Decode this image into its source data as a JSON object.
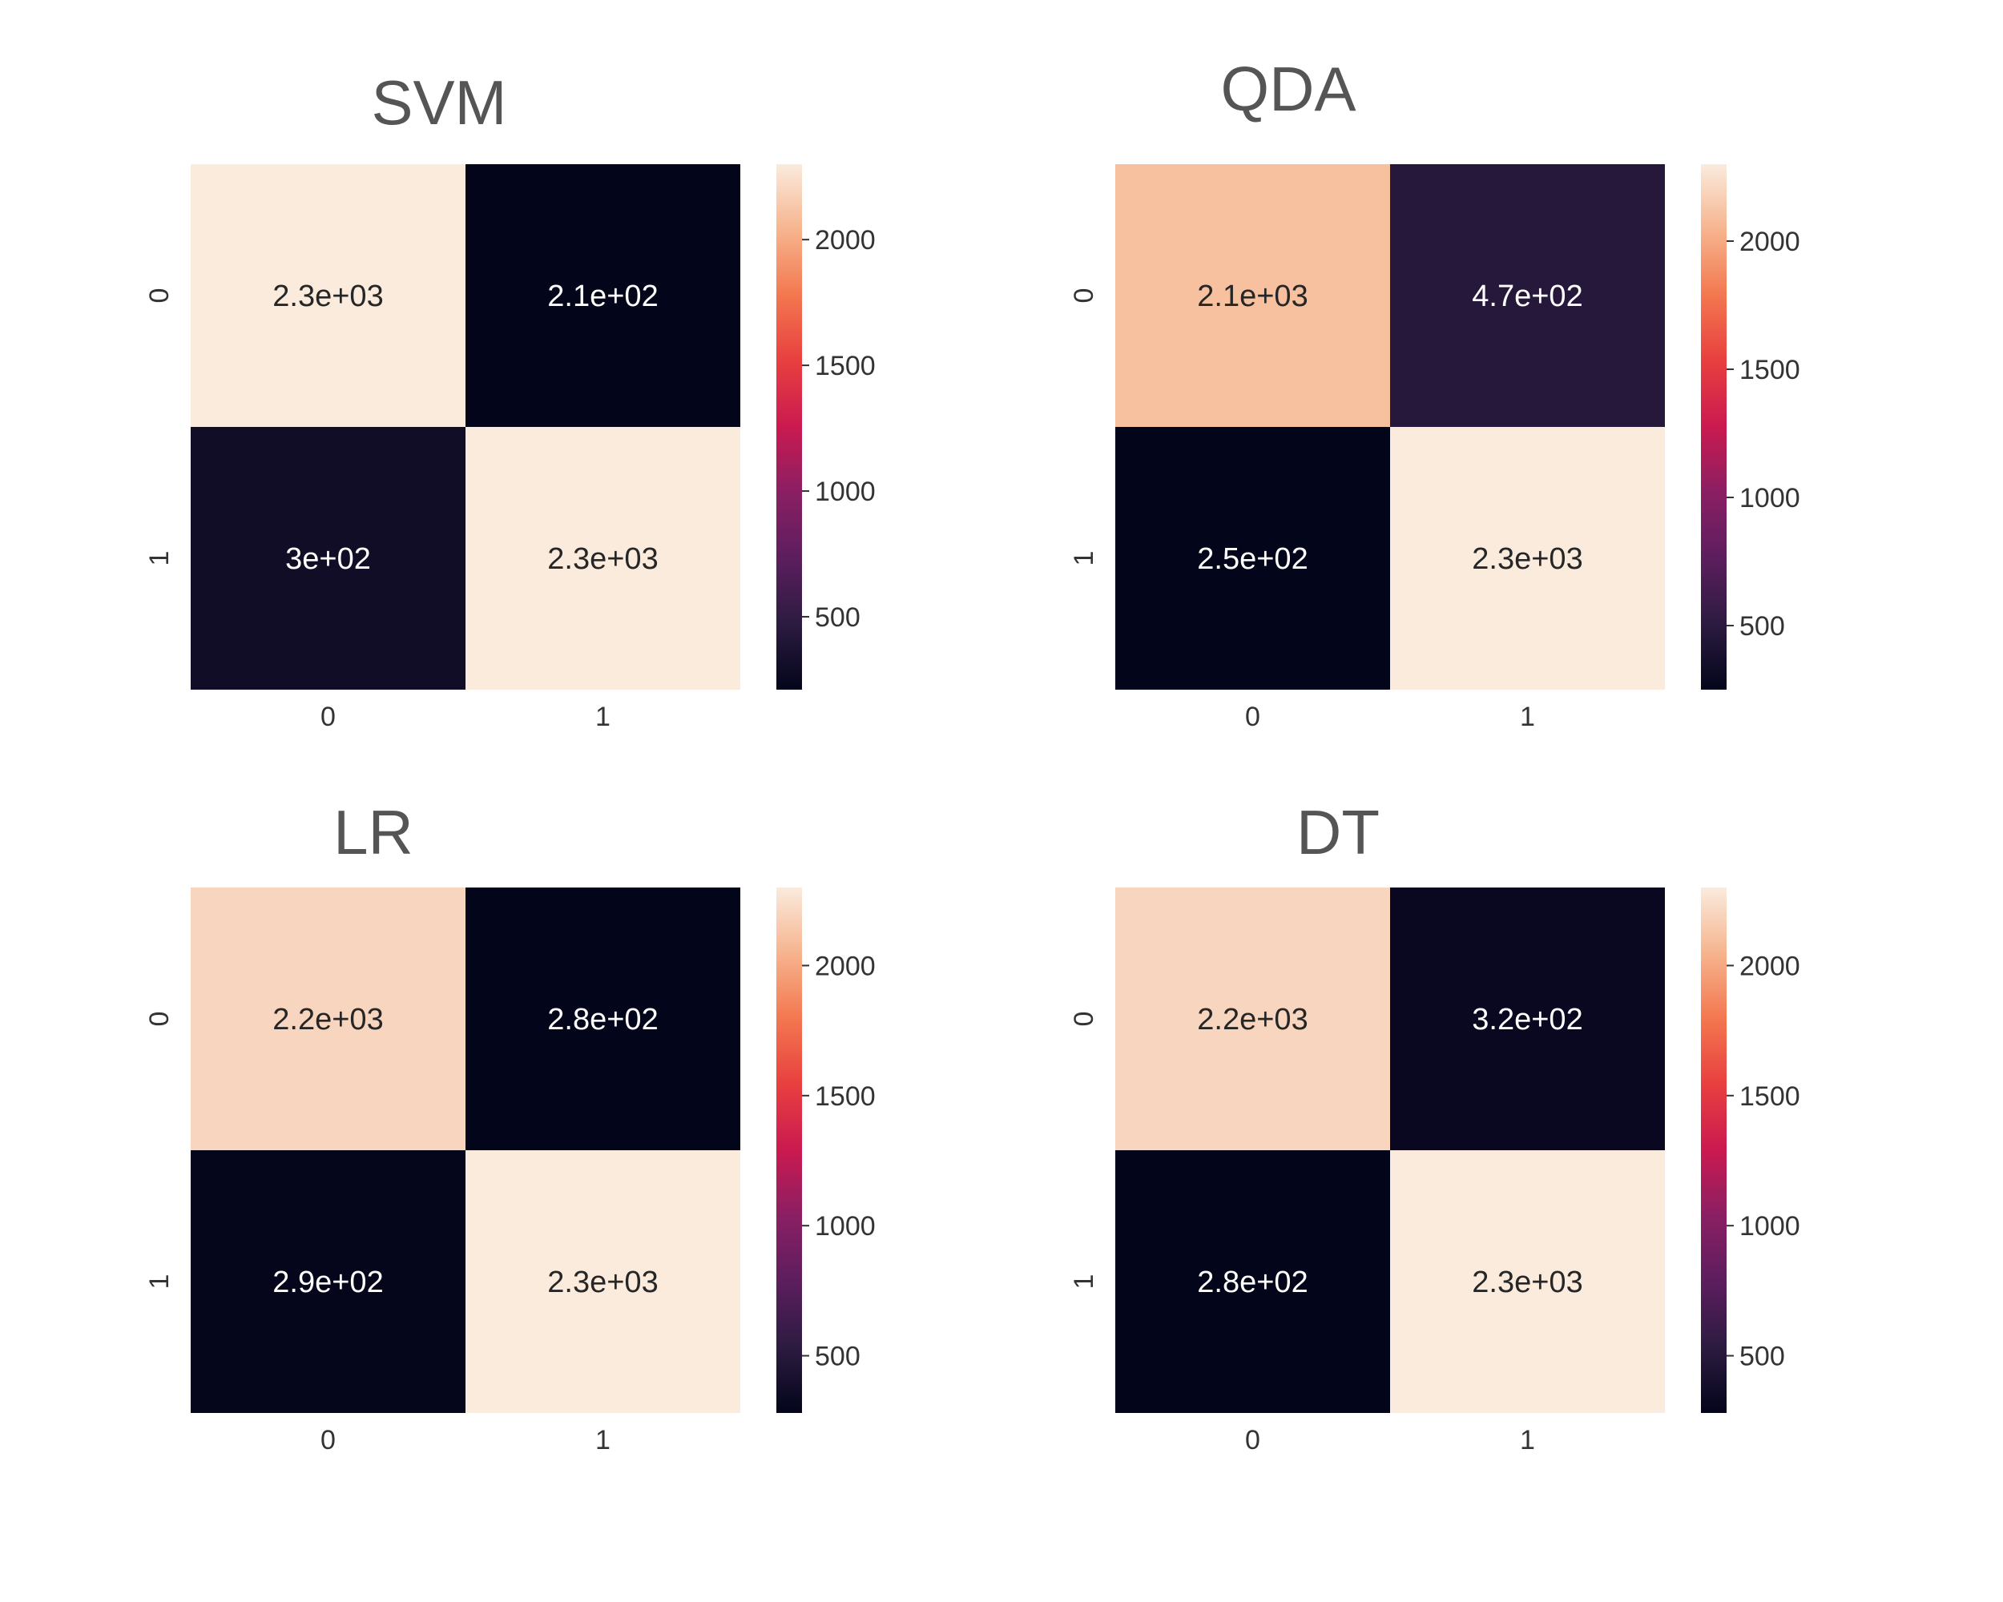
{
  "chart_data": [
    {
      "type": "heatmap",
      "title": "SVM",
      "x_categories": [
        "0",
        "1"
      ],
      "y_categories": [
        "0",
        "1"
      ],
      "values": [
        [
          2300,
          210
        ],
        [
          300,
          2300
        ]
      ],
      "annotations": [
        [
          "2.3e+03",
          "2.1e+02"
        ],
        [
          "3e+02",
          "2.3e+03"
        ]
      ],
      "colorbar": {
        "range": [
          210,
          2300
        ],
        "ticks": [
          500,
          1000,
          1500,
          2000
        ],
        "tick_labels": [
          "500",
          "1000",
          "1500",
          "2000"
        ]
      },
      "colormap": "rocket"
    },
    {
      "type": "heatmap",
      "title": "QDA",
      "x_categories": [
        "0",
        "1"
      ],
      "y_categories": [
        "0",
        "1"
      ],
      "values": [
        [
          2100,
          470
        ],
        [
          250,
          2300
        ]
      ],
      "annotations": [
        [
          "2.1e+03",
          "4.7e+02"
        ],
        [
          "2.5e+02",
          "2.3e+03"
        ]
      ],
      "colorbar": {
        "range": [
          250,
          2300
        ],
        "ticks": [
          500,
          1000,
          1500,
          2000
        ],
        "tick_labels": [
          "500",
          "1000",
          "1500",
          "2000"
        ]
      },
      "colormap": "rocket"
    },
    {
      "type": "heatmap",
      "title": "LR",
      "x_categories": [
        "0",
        "1"
      ],
      "y_categories": [
        "0",
        "1"
      ],
      "values": [
        [
          2200,
          280
        ],
        [
          290,
          2300
        ]
      ],
      "annotations": [
        [
          "2.2e+03",
          "2.8e+02"
        ],
        [
          "2.9e+02",
          "2.3e+03"
        ]
      ],
      "colorbar": {
        "range": [
          280,
          2300
        ],
        "ticks": [
          500,
          1000,
          1500,
          2000
        ],
        "tick_labels": [
          "500",
          "1000",
          "1500",
          "2000"
        ]
      },
      "colormap": "rocket"
    },
    {
      "type": "heatmap",
      "title": "DT",
      "x_categories": [
        "0",
        "1"
      ],
      "y_categories": [
        "0",
        "1"
      ],
      "values": [
        [
          2200,
          320
        ],
        [
          280,
          2300
        ]
      ],
      "annotations": [
        [
          "2.2e+03",
          "3.2e+02"
        ],
        [
          "2.8e+02",
          "2.3e+03"
        ]
      ],
      "colorbar": {
        "range": [
          280,
          2300
        ],
        "ticks": [
          500,
          1000,
          1500,
          2000
        ],
        "tick_labels": [
          "500",
          "1000",
          "1500",
          "2000"
        ]
      },
      "colormap": "rocket"
    }
  ]
}
